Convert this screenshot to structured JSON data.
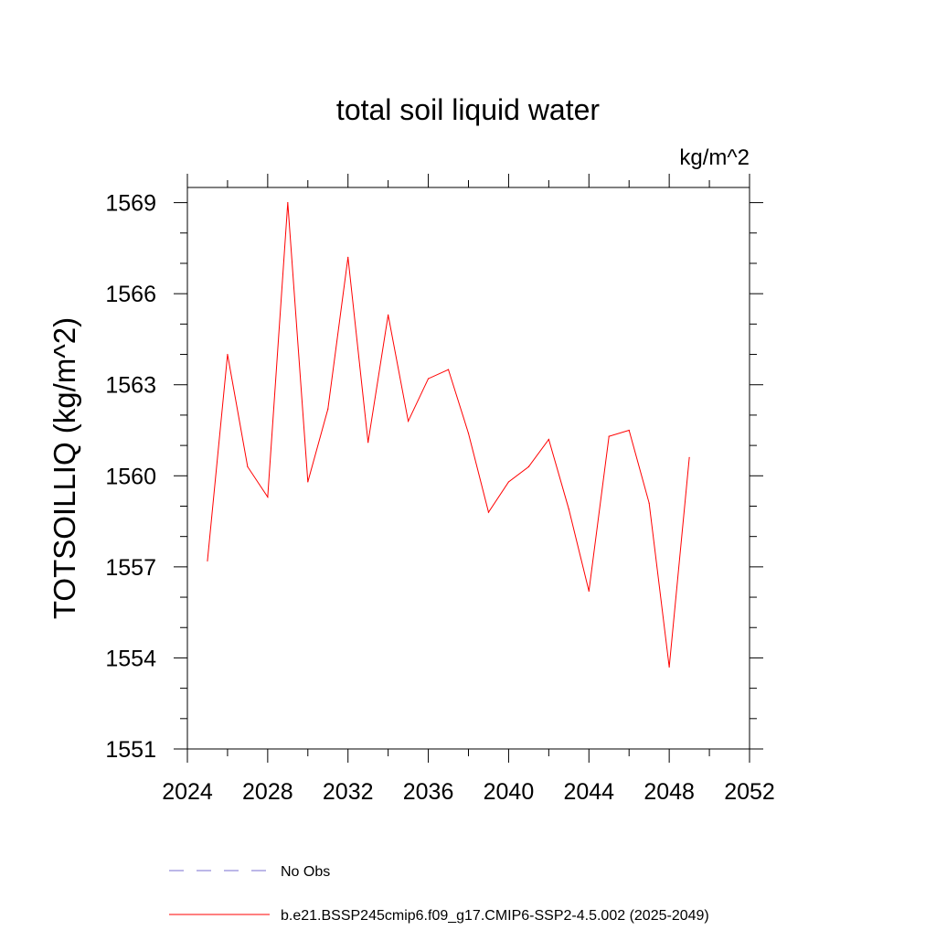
{
  "chart_data": {
    "type": "line",
    "title": "total soil liquid water",
    "units_label": "kg/m^2",
    "xlabel": "",
    "ylabel": "TOTSOILLIQ  (kg/m^2)",
    "xlim": [
      2024,
      2052
    ],
    "ylim": [
      1551,
      1569.5
    ],
    "x_major_ticks": [
      2024,
      2028,
      2032,
      2036,
      2040,
      2044,
      2048,
      2052
    ],
    "x_tick_labels": [
      "2024",
      "2028",
      "2032",
      "2036",
      "2040",
      "2044",
      "2048",
      "2052"
    ],
    "y_major_ticks": [
      1551,
      1554,
      1557,
      1560,
      1563,
      1566,
      1569
    ],
    "y_tick_labels": [
      "1551",
      "1554",
      "1557",
      "1560",
      "1563",
      "1566",
      "1569"
    ],
    "x_minor_step": 2,
    "y_minor_step": 1,
    "grid": false,
    "series": [
      {
        "name": "b.e21.BSSP245cmip6.f09_g17.CMIP6-SSP2-4.5.002 (2025-2049)",
        "color": "#ff0000",
        "style": "solid",
        "x": [
          2025,
          2026,
          2027,
          2028,
          2029,
          2030,
          2031,
          2032,
          2033,
          2034,
          2035,
          2036,
          2037,
          2038,
          2039,
          2040,
          2041,
          2042,
          2043,
          2044,
          2045,
          2046,
          2047,
          2048,
          2049
        ],
        "values": [
          1557.2,
          1564.0,
          1560.3,
          1559.3,
          1569.0,
          1559.8,
          1562.2,
          1567.2,
          1561.1,
          1565.3,
          1561.8,
          1563.2,
          1563.5,
          1561.4,
          1558.8,
          1559.8,
          1560.3,
          1561.2,
          1558.9,
          1556.2,
          1561.3,
          1561.5,
          1559.1,
          1553.7,
          1560.6
        ]
      }
    ],
    "legend": {
      "placement": "bottom-left",
      "items": [
        {
          "label": "No Obs",
          "color": "#7a6fd0",
          "style": "dashed"
        },
        {
          "label": "b.e21.BSSP245cmip6.f09_g17.CMIP6-SSP2-4.5.002 (2025-2049)",
          "color": "#ff0000",
          "style": "solid"
        }
      ]
    }
  }
}
